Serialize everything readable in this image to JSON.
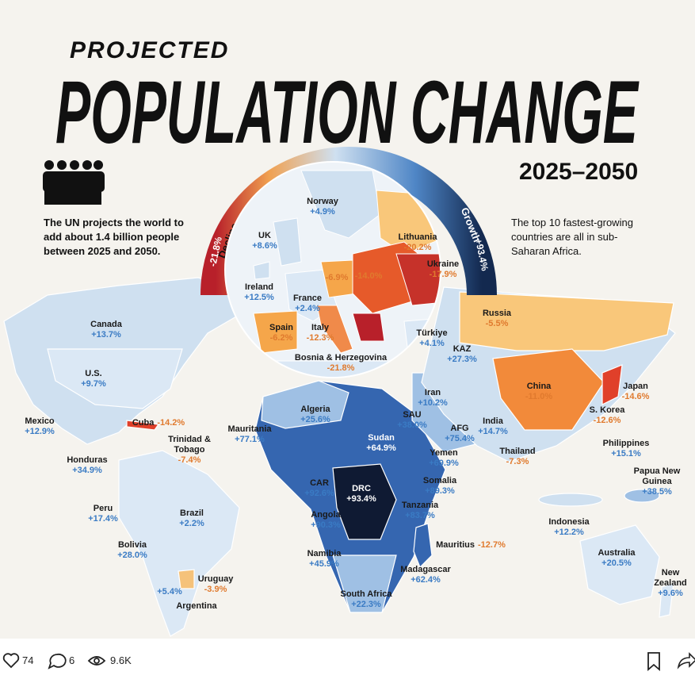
{
  "header": {
    "kicker": "PROJECTED",
    "title": "POPULATION CHANGE",
    "period": "2025–2050"
  },
  "notes": {
    "left": "The UN projects the world to add about 1.4 billion people between 2025 and 2050.",
    "right": "The top 10 fastest-growing countries are all in sub-Saharan Africa."
  },
  "legend": {
    "decline": "Decline",
    "decline_value": "-21.8%",
    "growth": "Growth",
    "growth_value": "+93.4%"
  },
  "labels": [
    {
      "name": "Norway",
      "change": "+4.9%"
    },
    {
      "name": "UK",
      "change": "+8.6%"
    },
    {
      "name": "Lithuania",
      "change": "-20.2%"
    },
    {
      "name": "Ukraine",
      "change": "-17.9%"
    },
    {
      "name": "Ireland",
      "change": "+12.5%"
    },
    {
      "change": "-6.9%"
    },
    {
      "change": "-14.0%"
    },
    {
      "name": "France",
      "change": "+2.4%"
    },
    {
      "name": "Spain",
      "change": "-6.2%"
    },
    {
      "name": "Italy",
      "change": "-12.3%"
    },
    {
      "name": "Türkiye",
      "change": "+4.1%"
    },
    {
      "name": "Bosnia & Herzegovina",
      "change": "-21.8%"
    },
    {
      "name": "Russia",
      "change": "-5.5%"
    },
    {
      "name": "Canada",
      "change": "+13.7%"
    },
    {
      "name": "KAZ",
      "change": "+27.3%"
    },
    {
      "name": "U.S.",
      "change": "+9.7%"
    },
    {
      "name": "Iran",
      "change": "+10.2%"
    },
    {
      "name": "China",
      "change": "-11.0%"
    },
    {
      "name": "Japan",
      "change": "-14.6%"
    },
    {
      "name": "Mexico",
      "change": "+12.9%"
    },
    {
      "name": "Cuba",
      "change": "-14.2%"
    },
    {
      "name": "Algeria",
      "change": "+25.6%"
    },
    {
      "name": "SAU",
      "change": "+38.0%"
    },
    {
      "name": "S. Korea",
      "change": "-12.6%"
    },
    {
      "name": "Mauritania",
      "change": "+77.1%"
    },
    {
      "name": "Sudan",
      "change": "+64.9%"
    },
    {
      "name": "AFG",
      "change": "+75.4%"
    },
    {
      "name": "India",
      "change": "+14.7%"
    },
    {
      "name": "Trinidad & Tobago",
      "change": "-7.4%"
    },
    {
      "name": "Yemen",
      "change": "+69.9%"
    },
    {
      "name": "Thailand",
      "change": "-7.3%"
    },
    {
      "name": "Philippines",
      "change": "+15.1%"
    },
    {
      "name": "Honduras",
      "change": "+34.9%"
    },
    {
      "name": "Papua New Guinea",
      "change": "+38.5%"
    },
    {
      "name": "Somalia",
      "change": "+89.3%"
    },
    {
      "name": "CAR",
      "change": "+92.6%"
    },
    {
      "name": "DRC",
      "change": "+93.4%"
    },
    {
      "name": "Peru",
      "change": "+17.4%"
    },
    {
      "name": "Brazil",
      "change": "+2.2%"
    },
    {
      "name": "Tanzania",
      "change": "+83.7%"
    },
    {
      "name": "Angola",
      "change": "+90.3%"
    },
    {
      "name": "Indonesia",
      "change": "+12.2%"
    },
    {
      "name": "Bolivia",
      "change": "+28.0%"
    },
    {
      "name": "Mauritius",
      "change": "-12.7%"
    },
    {
      "name": "Namibia",
      "change": "+45.9%"
    },
    {
      "name": "Australia",
      "change": "+20.5%"
    },
    {
      "name": "Madagascar",
      "change": "+62.4%"
    },
    {
      "name": "Uruguay",
      "change": "-3.9%"
    },
    {
      "name": "New Zealand",
      "change": "+9.6%"
    },
    {
      "change": "+5.4%"
    },
    {
      "name": "Argentina"
    },
    {
      "name": "South Africa",
      "change": "+22.3%"
    }
  ],
  "footer": {
    "likes": "74",
    "comments": "6",
    "views": "9.6K"
  }
}
